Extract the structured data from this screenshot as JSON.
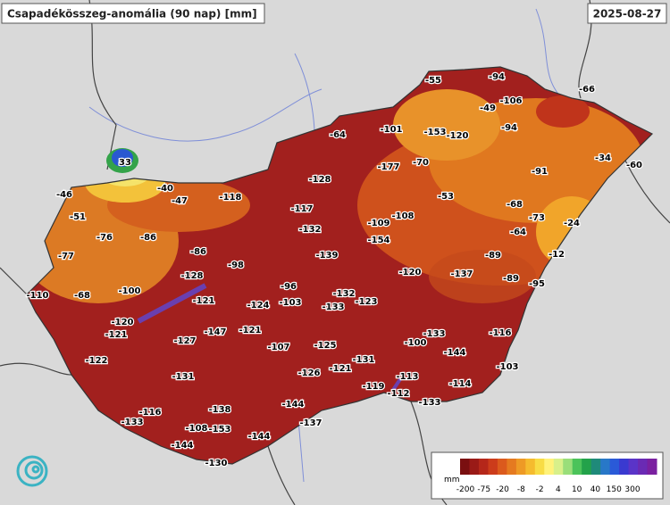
{
  "header": {
    "title": "Csapadékösszeg-anomália (90 nap) [mm]",
    "date": "2025-08-27"
  },
  "stations": [
    "-55",
    "-94",
    "-106",
    "-49",
    "-66",
    "-94",
    "-101",
    "-153",
    "-120",
    "-64",
    "-177",
    "-70",
    "-91",
    "-34",
    "-60",
    "33",
    "-46",
    "-40",
    "-47",
    "-118",
    "-128",
    "-53",
    "-117",
    "-109",
    "-108",
    "-68",
    "-73",
    "-24",
    "-51",
    "-132",
    "-154",
    "-64",
    "-76",
    "-86",
    "-86",
    "-139",
    "-89",
    "-12",
    "-77",
    "-98",
    "-120",
    "-137",
    "-89",
    "-95",
    "-128",
    "-96",
    "-110",
    "-68",
    "-100",
    "-121",
    "-124",
    "-103",
    "-132",
    "-133",
    "-123",
    "-120",
    "-121",
    "-147",
    "-121",
    "-127",
    "-107",
    "-125",
    "-100",
    "-133",
    "-116",
    "-144",
    "-122",
    "-131",
    "-126",
    "-121",
    "-131",
    "-113",
    "-103",
    "-119",
    "-112",
    "-114",
    "-144",
    "-133",
    "-116",
    "-138",
    "-133",
    "-137",
    "-108",
    "-153",
    "-144",
    "-144",
    "-130"
  ],
  "legend": {
    "unit": "mm",
    "ticks": [
      "-200",
      "-75",
      "-20",
      "-8",
      "-2",
      "4",
      "10",
      "40",
      "150",
      "300"
    ]
  }
}
